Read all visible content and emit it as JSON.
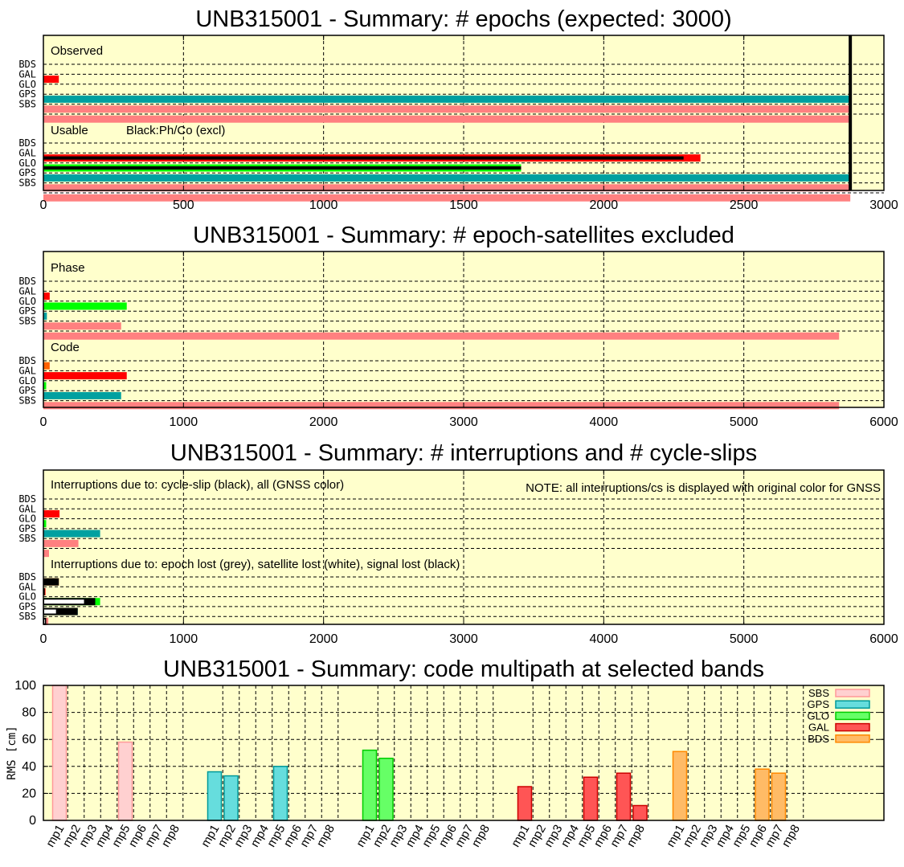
{
  "colors": {
    "plot_background": "#ffffcc",
    "SBS": "#ff8080",
    "GPS": "#00a0a0",
    "GLO": "#00ff00",
    "GAL": "#ff0000",
    "BDS": "#ff6000",
    "mp_fill": {
      "SBS": "#ffd0d0",
      "GPS": "#66dddd",
      "GLO": "#66ff66",
      "GAL": "#ff5555",
      "BDS": "#ffbb66"
    },
    "mp_edge": {
      "SBS": "#ff9999",
      "GPS": "#009999",
      "GLO": "#00cc00",
      "GAL": "#cc0000",
      "BDS": "#ff8800"
    }
  },
  "chart_data": [
    {
      "type": "bar",
      "orientation": "horizontal",
      "title": "UNB315001 - Summary: # epochs (expected: 3000)",
      "xlim": [
        0,
        3000
      ],
      "xticks": [
        0,
        500,
        1000,
        1500,
        2000,
        2500,
        3000
      ],
      "grid": true,
      "reference_line": 2880,
      "groups": [
        {
          "label": "Observed",
          "rows": [
            {
              "gnss": "BDS",
              "value": 0
            },
            {
              "gnss": "GAL",
              "value": 55
            },
            {
              "gnss": "GLO",
              "value": 0
            },
            {
              "gnss": "GPS",
              "value": 2880
            },
            {
              "gnss": "SBS",
              "value": 2880
            },
            {
              "gnss": "",
              "value": 2880
            }
          ]
        },
        {
          "label": "Usable",
          "note": "Black:Ph/Co (excl)",
          "rows": [
            {
              "gnss": "BDS",
              "value": 0
            },
            {
              "gnss": "GAL",
              "value": 2345,
              "excluded": 2285
            },
            {
              "gnss": "GLO",
              "value": 1705,
              "excluded": 1705
            },
            {
              "gnss": "GPS",
              "value": 2880
            },
            {
              "gnss": "SBS",
              "value": 2880
            },
            {
              "gnss": "",
              "value": 2880
            }
          ]
        }
      ]
    },
    {
      "type": "bar",
      "orientation": "horizontal",
      "title": "UNB315001 - Summary: # epoch-satellites excluded",
      "xlim": [
        0,
        6000
      ],
      "xticks": [
        0,
        1000,
        2000,
        3000,
        4000,
        5000,
        6000
      ],
      "grid": true,
      "groups": [
        {
          "label": "Phase",
          "rows": [
            {
              "gnss": "BDS",
              "value": 0
            },
            {
              "gnss": "GAL",
              "value": 45
            },
            {
              "gnss": "GLO",
              "value": 595
            },
            {
              "gnss": "GPS",
              "value": 25
            },
            {
              "gnss": "SBS",
              "value": 555
            },
            {
              "gnss": "",
              "value": 5680
            }
          ]
        },
        {
          "label": "Code",
          "rows": [
            {
              "gnss": "BDS",
              "value": 45
            },
            {
              "gnss": "GAL",
              "value": 595
            },
            {
              "gnss": "GLO",
              "value": 20
            },
            {
              "gnss": "GPS",
              "value": 555
            },
            {
              "gnss": "SBS",
              "value": 5680
            }
          ]
        }
      ]
    },
    {
      "type": "bar",
      "orientation": "horizontal",
      "title": "UNB315001 - Summary: # interruptions and # cycle-slips",
      "xlim": [
        0,
        6000
      ],
      "xticks": [
        0,
        1000,
        2000,
        3000,
        4000,
        5000,
        6000
      ],
      "grid": true,
      "annotation": "NOTE: all interruptions/cs is displayed with original color for GNSS",
      "groups": [
        {
          "label": "Interruptions due to: cycle-slip (black), all (GNSS color)",
          "rows": [
            {
              "gnss": "BDS",
              "value": 0
            },
            {
              "gnss": "GAL",
              "value": 115
            },
            {
              "gnss": "GLO",
              "value": 20
            },
            {
              "gnss": "GPS",
              "value": 405
            },
            {
              "gnss": "SBS",
              "value": 250
            },
            {
              "gnss": "",
              "value": 40
            }
          ]
        },
        {
          "label": "Interruptions due to: epoch lost (grey), satellite lost (white), signal lost (black)",
          "rows": [
            {
              "gnss": "BDS",
              "white": 0,
              "black": 110,
              "value": 110
            },
            {
              "gnss": "GAL",
              "white": 5,
              "black": 10,
              "value": 15
            },
            {
              "gnss": "GLO",
              "white": 290,
              "black": 370,
              "value": 405
            },
            {
              "gnss": "GPS",
              "white": 90,
              "black": 245,
              "value": 245
            },
            {
              "gnss": "SBS",
              "white": 10,
              "black": 20,
              "value": 35
            }
          ]
        }
      ]
    },
    {
      "type": "bar",
      "title": "UNB315001 - Summary: code multipath at selected bands",
      "ylabel": "RMS [cm]",
      "ylim": [
        0,
        100
      ],
      "yticks": [
        0,
        20,
        40,
        60,
        80,
        100
      ],
      "grid": true,
      "legend_position": "top-right",
      "categories": [
        "mp1",
        "mp2",
        "mp3",
        "mp4",
        "mp5",
        "mp6",
        "mp7",
        "mp8"
      ],
      "series": [
        {
          "name": "SBS",
          "values": [
            100,
            0,
            0,
            0,
            58,
            0,
            0,
            0
          ]
        },
        {
          "name": "GPS",
          "values": [
            36,
            33,
            0,
            0,
            40,
            0,
            0,
            0
          ]
        },
        {
          "name": "GLO",
          "values": [
            52,
            46,
            0,
            0,
            0,
            0,
            0,
            0
          ]
        },
        {
          "name": "GAL",
          "values": [
            25,
            0,
            0,
            0,
            32,
            0,
            35,
            11
          ]
        },
        {
          "name": "BDS",
          "values": [
            51,
            0,
            0,
            0,
            0,
            38,
            35,
            0
          ]
        }
      ]
    }
  ]
}
